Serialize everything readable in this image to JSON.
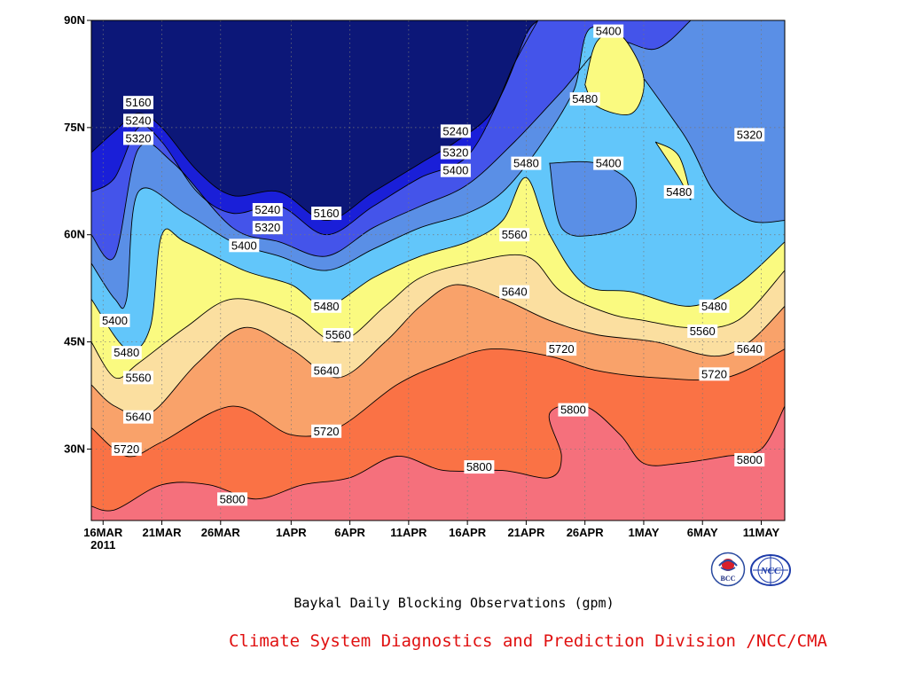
{
  "chart_data": {
    "type": "heatmap",
    "subtype": "filled-contour",
    "title": "Baykal Daily Blocking Observations (gpm)",
    "x_ticks": [
      "16MAR",
      "21MAR",
      "26MAR",
      "1APR",
      "6APR",
      "11APR",
      "16APR",
      "21APR",
      "26APR",
      "1MAY",
      "6MAY",
      "11MAY"
    ],
    "x_year_label": "2011",
    "y_ticks": [
      "30N",
      "45N",
      "60N",
      "75N",
      "90N"
    ],
    "ylim": [
      20,
      90
    ],
    "xlim": [
      "2011-03-15",
      "2011-05-13"
    ],
    "levels": [
      5160,
      5240,
      5320,
      5400,
      5480,
      5560,
      5640,
      5720,
      5800
    ],
    "colors": {
      "lt5160": "#0c1778",
      "5160": "#1a1fd8",
      "5240": "#4454ea",
      "5320": "#5a8fe6",
      "5400": "#62c6fa",
      "5480": "#fafa80",
      "5560": "#fbdfa0",
      "5640": "#f9a26a",
      "5720": "#fa7245",
      "5800": "#f5707c"
    },
    "contour_lines": [
      {
        "level": 5160,
        "points": [
          [
            "2011-03-15",
            71.5
          ],
          [
            "2011-03-17",
            74.5
          ],
          [
            "2011-03-19",
            77
          ],
          [
            "2011-03-21",
            75
          ],
          [
            "2011-03-24",
            69
          ],
          [
            "2011-03-27",
            65.5
          ],
          [
            "2011-03-31",
            66
          ],
          [
            "2011-04-04",
            62
          ],
          [
            "2011-04-08",
            66
          ],
          [
            "2011-04-12",
            70
          ],
          [
            "2011-04-15",
            73
          ],
          [
            "2011-04-18",
            77
          ],
          [
            "2011-04-20",
            84
          ],
          [
            "2011-04-22",
            90
          ]
        ]
      },
      {
        "level": 5240,
        "points": [
          [
            "2011-03-15",
            66
          ],
          [
            "2011-03-17",
            68
          ],
          [
            "2011-03-19",
            75
          ],
          [
            "2011-03-21",
            73
          ],
          [
            "2011-03-24",
            66
          ],
          [
            "2011-03-27",
            63
          ],
          [
            "2011-03-31",
            64
          ],
          [
            "2011-04-04",
            60
          ],
          [
            "2011-04-08",
            64
          ],
          [
            "2011-04-12",
            68
          ],
          [
            "2011-04-16",
            71
          ],
          [
            "2011-04-19",
            80
          ],
          [
            "2011-04-21",
            88
          ],
          [
            "2011-04-22",
            90
          ]
        ]
      },
      {
        "level": 5320,
        "points": [
          [
            "2011-03-15",
            60
          ],
          [
            "2011-03-17",
            57
          ],
          [
            "2011-03-19",
            72
          ],
          [
            "2011-03-22",
            70
          ],
          [
            "2011-03-27",
            61
          ],
          [
            "2011-03-31",
            59
          ],
          [
            "2011-04-04",
            57
          ],
          [
            "2011-04-08",
            61
          ],
          [
            "2011-04-12",
            64
          ],
          [
            "2011-04-16",
            67
          ],
          [
            "2011-04-20",
            73
          ],
          [
            "2011-04-24",
            80
          ],
          [
            "2011-04-28",
            87
          ],
          [
            "2011-05-02",
            86
          ],
          [
            "2011-05-05",
            90
          ]
        ]
      },
      {
        "level": 5400,
        "points": [
          [
            "2011-03-15",
            56
          ],
          [
            "2011-03-17",
            51
          ],
          [
            "2011-03-18",
            51
          ],
          [
            "2011-03-19",
            66
          ],
          [
            "2011-03-23",
            63
          ],
          [
            "2011-03-27",
            59
          ],
          [
            "2011-03-31",
            57
          ],
          [
            "2011-04-04",
            55
          ],
          [
            "2011-04-08",
            58
          ],
          [
            "2011-04-12",
            61
          ],
          [
            "2011-04-16",
            63
          ],
          [
            "2011-04-19",
            66
          ],
          [
            "2011-04-22",
            72
          ],
          [
            "2011-04-25",
            80
          ],
          [
            "2011-04-27",
            89
          ],
          [
            "2011-05-04",
            75
          ],
          [
            "2011-05-07",
            66
          ],
          [
            "2011-05-10",
            62
          ],
          [
            "2011-05-13",
            62
          ]
        ]
      },
      {
        "level": 5480,
        "points": [
          [
            "2011-03-15",
            51
          ],
          [
            "2011-03-18",
            44
          ],
          [
            "2011-03-20",
            47
          ],
          [
            "2011-03-21",
            60
          ],
          [
            "2011-03-23",
            59
          ],
          [
            "2011-03-28",
            55
          ],
          [
            "2011-04-01",
            53
          ],
          [
            "2011-04-04",
            50
          ],
          [
            "2011-04-08",
            54
          ],
          [
            "2011-04-12",
            57
          ],
          [
            "2011-04-16",
            59
          ],
          [
            "2011-04-19",
            62
          ],
          [
            "2011-04-21",
            68
          ],
          [
            "2011-04-23",
            60
          ],
          [
            "2011-04-26",
            53
          ],
          [
            "2011-04-30",
            52
          ],
          [
            "2011-05-05",
            50
          ],
          [
            "2011-05-09",
            53
          ],
          [
            "2011-05-13",
            59
          ]
        ]
      },
      {
        "level": 5560,
        "points": [
          [
            "2011-03-15",
            45
          ],
          [
            "2011-03-17",
            40
          ],
          [
            "2011-03-19",
            42
          ],
          [
            "2011-03-23",
            47
          ],
          [
            "2011-03-27",
            51
          ],
          [
            "2011-04-01",
            49
          ],
          [
            "2011-04-05",
            45
          ],
          [
            "2011-04-09",
            50
          ],
          [
            "2011-04-12",
            54
          ],
          [
            "2011-04-16",
            56
          ],
          [
            "2011-04-21",
            57
          ],
          [
            "2011-04-24",
            52
          ],
          [
            "2011-04-28",
            49
          ],
          [
            "2011-05-01",
            48
          ],
          [
            "2011-05-05",
            47
          ],
          [
            "2011-05-09",
            48
          ],
          [
            "2011-05-13",
            55
          ]
        ]
      },
      {
        "level": 5640,
        "points": [
          [
            "2011-03-15",
            39
          ],
          [
            "2011-03-17",
            36
          ],
          [
            "2011-03-20",
            35
          ],
          [
            "2011-03-24",
            42
          ],
          [
            "2011-03-28",
            47
          ],
          [
            "2011-04-01",
            44
          ],
          [
            "2011-04-05",
            40
          ],
          [
            "2011-04-09",
            45
          ],
          [
            "2011-04-12",
            50
          ],
          [
            "2011-04-15",
            53
          ],
          [
            "2011-04-19",
            51
          ],
          [
            "2011-04-23",
            48
          ],
          [
            "2011-04-27",
            46
          ],
          [
            "2011-05-02",
            45
          ],
          [
            "2011-05-07",
            43
          ],
          [
            "2011-05-10",
            45
          ],
          [
            "2011-05-13",
            50
          ]
        ]
      },
      {
        "level": 5720,
        "points": [
          [
            "2011-03-15",
            33
          ],
          [
            "2011-03-18",
            29
          ],
          [
            "2011-03-21",
            31
          ],
          [
            "2011-03-27",
            36
          ],
          [
            "2011-04-01",
            32
          ],
          [
            "2011-04-05",
            33
          ],
          [
            "2011-04-10",
            39
          ],
          [
            "2011-04-14",
            42
          ],
          [
            "2011-04-18",
            44
          ],
          [
            "2011-04-23",
            43
          ],
          [
            "2011-04-27",
            41
          ],
          [
            "2011-05-02",
            40
          ],
          [
            "2011-05-08",
            40
          ],
          [
            "2011-05-13",
            44
          ]
        ]
      },
      {
        "level": 5800,
        "points": [
          [
            "2011-03-15",
            22
          ],
          [
            "2011-03-17",
            21.5
          ],
          [
            "2011-03-21",
            25
          ],
          [
            "2011-03-25",
            25
          ],
          [
            "2011-03-29",
            23
          ],
          [
            "2011-04-02",
            25
          ],
          [
            "2011-04-06",
            26
          ],
          [
            "2011-04-10",
            29
          ],
          [
            "2011-04-14",
            27
          ],
          [
            "2011-04-19",
            27
          ],
          [
            "2011-04-23",
            26
          ],
          [
            "2011-04-24",
            29
          ],
          [
            "2011-04-23",
            35
          ],
          [
            "2011-04-26",
            36
          ],
          [
            "2011-04-29",
            32
          ],
          [
            "2011-05-01",
            28
          ],
          [
            "2011-05-04",
            28
          ],
          [
            "2011-05-08",
            29
          ],
          [
            "2011-05-11",
            30
          ],
          [
            "2011-05-13",
            36
          ]
        ]
      }
    ],
    "islands": [
      {
        "level": 5480,
        "fill_level": 5480,
        "points": [
          [
            "2011-04-26",
            81
          ],
          [
            "2011-04-27",
            87
          ],
          [
            "2011-04-29",
            88
          ],
          [
            "2011-05-01",
            82
          ],
          [
            "2011-04-30",
            77
          ],
          [
            "2011-04-27",
            78
          ]
        ]
      },
      {
        "level": 5400,
        "fill_level": 5320,
        "points": [
          [
            "2011-04-23",
            70
          ],
          [
            "2011-04-27",
            70
          ],
          [
            "2011-04-30",
            67
          ],
          [
            "2011-04-30",
            62
          ],
          [
            "2011-04-27",
            60
          ],
          [
            "2011-04-24",
            61
          ]
        ]
      },
      {
        "level": 5480,
        "fill_level": 5480,
        "points": [
          [
            "2011-05-02",
            73
          ],
          [
            "2011-05-04",
            71
          ],
          [
            "2011-05-05",
            65
          ],
          [
            "2011-05-04",
            68
          ]
        ]
      }
    ],
    "contour_labels": [
      {
        "text": "5160",
        "x": "2011-03-19",
        "y": 78.5
      },
      {
        "text": "5240",
        "x": "2011-03-19",
        "y": 76
      },
      {
        "text": "5320",
        "x": "2011-03-19",
        "y": 73.5
      },
      {
        "text": "5240",
        "x": "2011-03-30",
        "y": 63.5
      },
      {
        "text": "5160",
        "x": "2011-04-04",
        "y": 63
      },
      {
        "text": "5320",
        "x": "2011-03-30",
        "y": 61
      },
      {
        "text": "5400",
        "x": "2011-03-28",
        "y": 58.5
      },
      {
        "text": "5400",
        "x": "2011-03-17",
        "y": 48
      },
      {
        "text": "5480",
        "x": "2011-03-18",
        "y": 43.5
      },
      {
        "text": "5560",
        "x": "2011-03-19",
        "y": 40
      },
      {
        "text": "5640",
        "x": "2011-03-19",
        "y": 34.5
      },
      {
        "text": "5720",
        "x": "2011-03-18",
        "y": 30
      },
      {
        "text": "5800",
        "x": "2011-03-27",
        "y": 23
      },
      {
        "text": "5480",
        "x": "2011-04-04",
        "y": 50
      },
      {
        "text": "5560",
        "x": "2011-04-05",
        "y": 46
      },
      {
        "text": "5640",
        "x": "2011-04-04",
        "y": 41
      },
      {
        "text": "5720",
        "x": "2011-04-04",
        "y": 32.5
      },
      {
        "text": "5800",
        "x": "2011-04-17",
        "y": 27.5
      },
      {
        "text": "5240",
        "x": "2011-04-15",
        "y": 74.5
      },
      {
        "text": "5320",
        "x": "2011-04-15",
        "y": 71.5
      },
      {
        "text": "5400",
        "x": "2011-04-15",
        "y": 69
      },
      {
        "text": "5480",
        "x": "2011-04-21",
        "y": 70
      },
      {
        "text": "5560",
        "x": "2011-04-20",
        "y": 60
      },
      {
        "text": "5640",
        "x": "2011-04-20",
        "y": 52
      },
      {
        "text": "5720",
        "x": "2011-04-24",
        "y": 44
      },
      {
        "text": "5800",
        "x": "2011-04-25",
        "y": 35.5
      },
      {
        "text": "5400",
        "x": "2011-04-28",
        "y": 88.5
      },
      {
        "text": "5480",
        "x": "2011-04-26",
        "y": 79
      },
      {
        "text": "5400",
        "x": "2011-04-28",
        "y": 70
      },
      {
        "text": "5480",
        "x": "2011-05-04",
        "y": 66
      },
      {
        "text": "5320",
        "x": "2011-05-10",
        "y": 74
      },
      {
        "text": "5480",
        "x": "2011-05-07",
        "y": 50
      },
      {
        "text": "5560",
        "x": "2011-05-06",
        "y": 46.5
      },
      {
        "text": "5640",
        "x": "2011-05-10",
        "y": 44
      },
      {
        "text": "5720",
        "x": "2011-05-07",
        "y": 40.5
      },
      {
        "text": "5800",
        "x": "2011-05-10",
        "y": 28.5
      }
    ],
    "grid": true
  },
  "caption": "Baykal Daily Blocking Observations (gpm)",
  "credit": "Climate System Diagnostics and Prediction Division /NCC/CMA",
  "logos": [
    {
      "icon": "bcc-logo",
      "text": "BCC"
    },
    {
      "icon": "ncc-logo",
      "text": "NCC"
    }
  ]
}
